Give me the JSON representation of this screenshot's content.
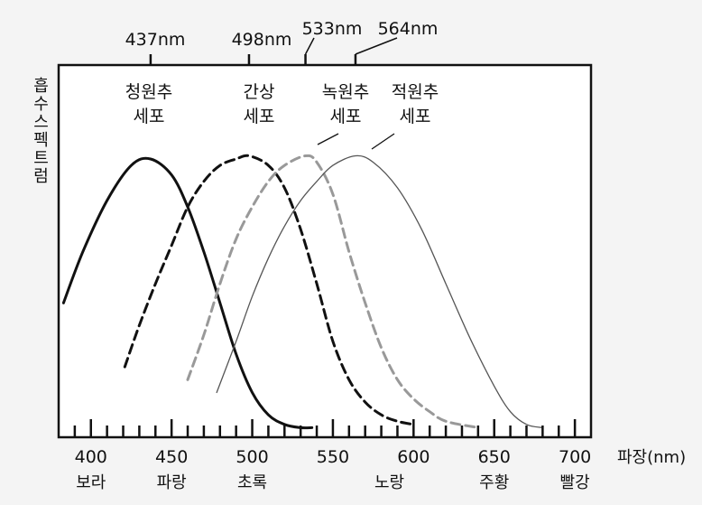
{
  "chart_data": {
    "type": "line",
    "title": "",
    "xlabel": "파장(nm)",
    "ylabel": "흡수스펙트럼",
    "xlim": [
      380,
      710
    ],
    "ylim": [
      0,
      1
    ],
    "x_ticks": [
      {
        "value": 400,
        "label": "400",
        "color": "보라"
      },
      {
        "value": 450,
        "label": "450",
        "color": "파랑"
      },
      {
        "value": 500,
        "label": "500",
        "color": "초록"
      },
      {
        "value": 550,
        "label": "550",
        "color": ""
      },
      {
        "value": 600,
        "label": "600",
        "color": "노랑"
      },
      {
        "value": 650,
        "label": "650",
        "color": "주황"
      },
      {
        "value": 700,
        "label": "700",
        "color": "빨강"
      }
    ],
    "color_names": [
      {
        "x": 400,
        "text": "보라"
      },
      {
        "x": 450,
        "text": "파랑"
      },
      {
        "x": 500,
        "text": "초록"
      },
      {
        "x": 585,
        "text": "노랑"
      },
      {
        "x": 650,
        "text": "주황"
      },
      {
        "x": 700,
        "text": "빨강"
      }
    ],
    "peaks": [
      {
        "value": 437,
        "label": "437nm"
      },
      {
        "value": 498,
        "label": "498nm"
      },
      {
        "value": 533,
        "label": "533nm"
      },
      {
        "value": 564,
        "label": "564nm"
      }
    ],
    "series": [
      {
        "name": "청원추 세포",
        "label_lines": [
          "청원추",
          "세포"
        ],
        "color": "#111111",
        "dash": "solid",
        "points": [
          [
            383,
            0.42
          ],
          [
            395,
            0.58
          ],
          [
            410,
            0.74
          ],
          [
            425,
            0.85
          ],
          [
            437,
            0.87
          ],
          [
            450,
            0.82
          ],
          [
            460,
            0.72
          ],
          [
            470,
            0.58
          ],
          [
            480,
            0.42
          ],
          [
            490,
            0.26
          ],
          [
            500,
            0.14
          ],
          [
            510,
            0.07
          ],
          [
            520,
            0.04
          ],
          [
            530,
            0.03
          ],
          [
            537,
            0.03
          ]
        ]
      },
      {
        "name": "간상 세포",
        "label_lines": [
          "간상",
          "세포"
        ],
        "color": "#111111",
        "dash": "dashed",
        "points": [
          [
            421,
            0.22
          ],
          [
            430,
            0.35
          ],
          [
            440,
            0.48
          ],
          [
            450,
            0.6
          ],
          [
            460,
            0.72
          ],
          [
            470,
            0.8
          ],
          [
            480,
            0.85
          ],
          [
            490,
            0.87
          ],
          [
            498,
            0.88
          ],
          [
            510,
            0.85
          ],
          [
            520,
            0.78
          ],
          [
            530,
            0.65
          ],
          [
            540,
            0.48
          ],
          [
            550,
            0.3
          ],
          [
            560,
            0.18
          ],
          [
            570,
            0.11
          ],
          [
            580,
            0.07
          ],
          [
            590,
            0.05
          ],
          [
            600,
            0.04
          ]
        ]
      },
      {
        "name": "녹원추 세포",
        "label_lines": [
          "녹원추",
          "세포"
        ],
        "color": "#999999",
        "dash": "dashed",
        "points": [
          [
            460,
            0.18
          ],
          [
            470,
            0.32
          ],
          [
            480,
            0.48
          ],
          [
            490,
            0.62
          ],
          [
            500,
            0.72
          ],
          [
            510,
            0.8
          ],
          [
            520,
            0.85
          ],
          [
            533,
            0.88
          ],
          [
            540,
            0.86
          ],
          [
            550,
            0.76
          ],
          [
            560,
            0.58
          ],
          [
            570,
            0.42
          ],
          [
            580,
            0.28
          ],
          [
            590,
            0.18
          ],
          [
            600,
            0.12
          ],
          [
            610,
            0.08
          ],
          [
            620,
            0.05
          ],
          [
            640,
            0.03
          ]
        ]
      },
      {
        "name": "적원추 세포",
        "label_lines": [
          "적원추",
          "세포"
        ],
        "color": "#555555",
        "dash": "thin",
        "points": [
          [
            478,
            0.14
          ],
          [
            490,
            0.3
          ],
          [
            500,
            0.44
          ],
          [
            510,
            0.56
          ],
          [
            520,
            0.66
          ],
          [
            530,
            0.74
          ],
          [
            540,
            0.8
          ],
          [
            550,
            0.85
          ],
          [
            564,
            0.88
          ],
          [
            575,
            0.86
          ],
          [
            590,
            0.78
          ],
          [
            605,
            0.65
          ],
          [
            620,
            0.48
          ],
          [
            635,
            0.31
          ],
          [
            650,
            0.16
          ],
          [
            660,
            0.08
          ],
          [
            670,
            0.04
          ],
          [
            680,
            0.03
          ]
        ]
      }
    ],
    "grid": false,
    "legend": "labels on curves"
  }
}
